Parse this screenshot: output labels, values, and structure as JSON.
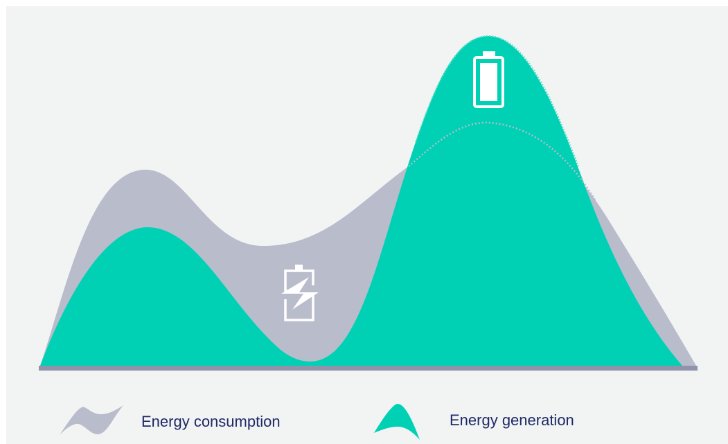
{
  "colors": {
    "background": "#f2f3f3",
    "consumption": "#b8bccb",
    "generation": "#00d1b5",
    "baseline": "#9094ab",
    "icon": "#ffffff",
    "label_text": "#1e2a66"
  },
  "icons": {
    "charging": "battery-charging-icon",
    "full": "battery-full-icon"
  },
  "legend": {
    "consumption": {
      "label": "Energy consumption",
      "swatch": "wave-swatch"
    },
    "generation": {
      "label": "Energy generation",
      "swatch": "peak-swatch"
    }
  }
}
